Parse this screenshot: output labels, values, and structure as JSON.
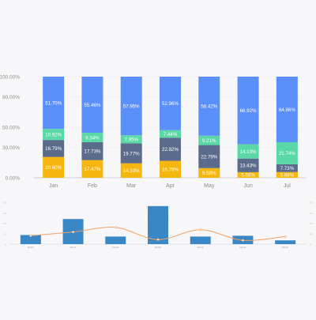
{
  "chart_data": [
    {
      "type": "bar",
      "stacked": true,
      "categories": [
        "Jan",
        "Feb",
        "Mar",
        "Apr",
        "May",
        "Jun",
        "Jul"
      ],
      "y_ticks": [
        "0.00%",
        "30.00%",
        "50.00%",
        "80.00%",
        "100.00%"
      ],
      "y_tick_values": [
        0,
        30,
        50,
        80,
        100
      ],
      "ylim": [
        0,
        100
      ],
      "grid": true,
      "series": [
        {
          "color": "#f5b70f",
          "text_color": "#ffffff",
          "values": [
            20.6,
            17.47,
            14.33,
            16.78,
            9.58,
            5.56,
            5.66
          ],
          "labels": [
            "20.60%",
            "17.47%",
            "14.33%",
            "16.78%",
            "9.58%",
            "5.56%",
            "5.66%"
          ]
        },
        {
          "color": "#5b6b8b",
          "text_color": "#ffffff",
          "values": [
            16.79,
            17.73,
            19.77,
            22.82,
            22.79,
            13.43,
            7.73
          ],
          "labels": [
            "16.79%",
            "17.73%",
            "19.77%",
            "22.82%",
            "22.79%",
            "13.43%",
            "7.73%"
          ]
        },
        {
          "color": "#5ad8a6",
          "text_color": "#ffffff",
          "values": [
            10.92,
            9.34,
            7.95,
            7.44,
            9.21,
            14.13,
            21.74
          ],
          "labels": [
            "10.92%",
            "9.34%",
            "7.95%",
            "7.44%",
            "9.21%",
            "14.13%",
            "21.74%"
          ]
        },
        {
          "color": "#5b8ff9",
          "text_color": "#ffffff",
          "values": [
            51.7,
            55.46,
            57.95,
            52.96,
            58.42,
            66.92,
            64.86
          ],
          "labels": [
            "51.70%",
            "55.46%",
            "57.95%",
            "52.96%",
            "58.42%",
            "66.92%",
            "64.86%"
          ]
        }
      ]
    },
    {
      "type": "bar",
      "overlay": "line",
      "categories": [
        "Dsmb",
        "Dsmb",
        "Dsmb",
        "Dsmb",
        "Dsmb",
        "Dsmb",
        "Dsmb"
      ],
      "bar_values": [
        1.2,
        3.3,
        1.0,
        5.0,
        1.0,
        1.1,
        0.5
      ],
      "line_values": [
        1.1,
        1.6,
        2.2,
        0.6,
        1.9,
        0.5,
        1.0
      ],
      "ylim": [
        0,
        5.5
      ],
      "left_ticks": [
        "0",
        "1.2",
        "2.5",
        "3.8",
        "5.0"
      ],
      "right_ticks": [
        "0",
        "0.5",
        "1.0",
        "1.5",
        "2.0"
      ],
      "bar_color": "#3a87c6",
      "line_color": "#f4a261"
    }
  ]
}
